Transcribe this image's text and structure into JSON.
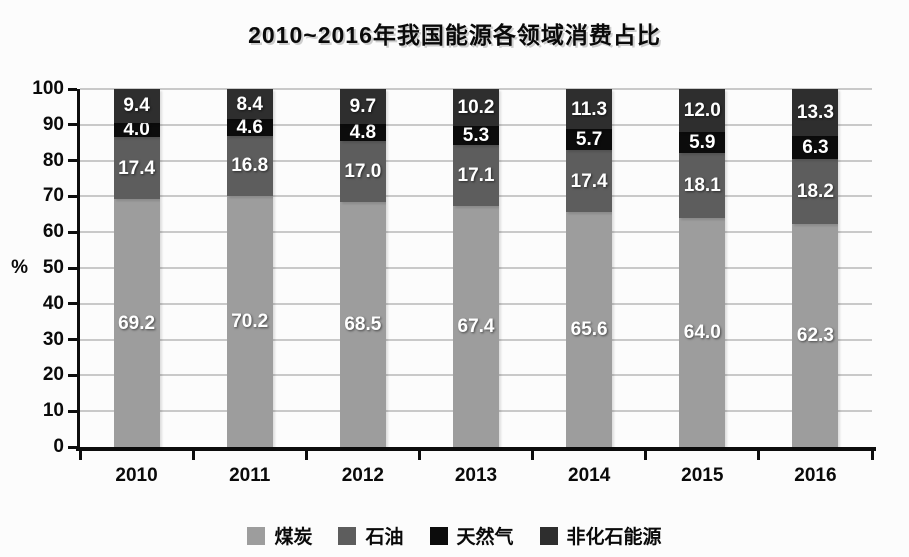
{
  "title": "2010~2016年我国能源各领域消费占比",
  "chart_data": {
    "type": "bar",
    "stacked": true,
    "title": "2010~2016年我国能源各领域消费占比",
    "categories": [
      "2010",
      "2011",
      "2012",
      "2013",
      "2014",
      "2015",
      "2016"
    ],
    "series": [
      {
        "name": "煤炭",
        "color": "#9d9d9d",
        "values": [
          69.2,
          70.2,
          68.5,
          67.4,
          65.6,
          64.0,
          62.3
        ]
      },
      {
        "name": "石油",
        "color": "#5d5d5d",
        "values": [
          17.4,
          16.8,
          17.0,
          17.1,
          17.4,
          18.1,
          18.2
        ]
      },
      {
        "name": "天然气",
        "color": "#0c0c0c",
        "values": [
          4.0,
          4.6,
          4.8,
          5.3,
          5.7,
          5.9,
          6.3
        ]
      },
      {
        "name": "非化石能源",
        "color": "#2e2e2e",
        "values": [
          9.4,
          8.4,
          9.7,
          10.2,
          11.3,
          12.0,
          13.3
        ]
      }
    ],
    "xlabel": "",
    "ylabel": "%",
    "ylim": [
      0,
      100
    ],
    "ytick_step": 10,
    "yticks": [
      "0",
      "10",
      "20",
      "30",
      "40",
      "50",
      "60",
      "70",
      "80",
      "90",
      "100"
    ],
    "grid": true,
    "gridline_color": "#c9c9c9",
    "axis_color": "#0d0d0d",
    "value_label_color": "#ffffff",
    "legend_position": "bottom"
  }
}
